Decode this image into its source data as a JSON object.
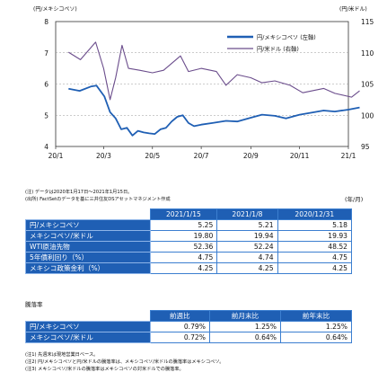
{
  "chart_data": {
    "type": "line",
    "left_axis_label": "(円/メキシコペソ)",
    "right_axis_label": "(円/米ドル)",
    "x_unit_label": "(年/月)",
    "x_tick_labels": [
      "20/1",
      "20/3",
      "20/5",
      "20/7",
      "20/9",
      "20/11",
      "21/1"
    ],
    "left_ylim": [
      4,
      8
    ],
    "left_ticks": [
      "8",
      "7",
      "6",
      "5",
      "4"
    ],
    "right_ylim": [
      95,
      115
    ],
    "right_ticks": [
      "115",
      "110",
      "105",
      "100",
      "95"
    ],
    "legend": [
      "円/メキシコペソ (左軸)",
      "円/米ドル (右軸)"
    ],
    "series": [
      {
        "name": "円/メキシコペソ (左軸)",
        "axis": "left",
        "color": "#1f5fb4",
        "points": [
          [
            "2020-01-17",
            5.85
          ],
          [
            "2020-01-31",
            5.78
          ],
          [
            "2020-02-14",
            5.92
          ],
          [
            "2020-02-21",
            5.95
          ],
          [
            "2020-03-02",
            5.6
          ],
          [
            "2020-03-09",
            5.1
          ],
          [
            "2020-03-16",
            4.9
          ],
          [
            "2020-03-23",
            4.55
          ],
          [
            "2020-03-30",
            4.6
          ],
          [
            "2020-04-06",
            4.35
          ],
          [
            "2020-04-13",
            4.5
          ],
          [
            "2020-04-20",
            4.45
          ],
          [
            "2020-04-27",
            4.42
          ],
          [
            "2020-05-04",
            4.4
          ],
          [
            "2020-05-11",
            4.55
          ],
          [
            "2020-05-18",
            4.6
          ],
          [
            "2020-05-25",
            4.8
          ],
          [
            "2020-06-01",
            4.95
          ],
          [
            "2020-06-08",
            5.0
          ],
          [
            "2020-06-15",
            4.75
          ],
          [
            "2020-06-22",
            4.65
          ],
          [
            "2020-07-01",
            4.7
          ],
          [
            "2020-07-15",
            4.75
          ],
          [
            "2020-08-01",
            4.82
          ],
          [
            "2020-08-15",
            4.8
          ],
          [
            "2020-09-01",
            4.92
          ],
          [
            "2020-09-15",
            5.02
          ],
          [
            "2020-10-01",
            4.98
          ],
          [
            "2020-10-15",
            4.9
          ],
          [
            "2020-11-01",
            5.02
          ],
          [
            "2020-11-15",
            5.08
          ],
          [
            "2020-12-01",
            5.15
          ],
          [
            "2020-12-15",
            5.12
          ],
          [
            "2021-01-01",
            5.18
          ],
          [
            "2021-01-15",
            5.25
          ]
        ]
      },
      {
        "name": "円/米ドル (右軸)",
        "axis": "right",
        "color": "#6b4d8c",
        "points": [
          [
            "2020-01-17",
            110.1
          ],
          [
            "2020-02-01",
            108.9
          ],
          [
            "2020-02-20",
            111.7
          ],
          [
            "2020-03-01",
            107.5
          ],
          [
            "2020-03-09",
            102.5
          ],
          [
            "2020-03-16",
            106.0
          ],
          [
            "2020-03-24",
            111.2
          ],
          [
            "2020-04-01",
            107.5
          ],
          [
            "2020-04-15",
            107.2
          ],
          [
            "2020-05-01",
            106.8
          ],
          [
            "2020-05-15",
            107.2
          ],
          [
            "2020-06-05",
            109.5
          ],
          [
            "2020-06-15",
            107.0
          ],
          [
            "2020-07-01",
            107.5
          ],
          [
            "2020-07-20",
            107.0
          ],
          [
            "2020-08-01",
            104.8
          ],
          [
            "2020-08-15",
            106.5
          ],
          [
            "2020-09-01",
            106.0
          ],
          [
            "2020-09-15",
            105.2
          ],
          [
            "2020-10-01",
            105.5
          ],
          [
            "2020-10-20",
            104.8
          ],
          [
            "2020-11-05",
            103.6
          ],
          [
            "2020-11-20",
            104.0
          ],
          [
            "2020-12-01",
            104.3
          ],
          [
            "2020-12-15",
            103.5
          ],
          [
            "2021-01-05",
            102.9
          ],
          [
            "2021-01-15",
            103.9
          ]
        ]
      }
    ]
  },
  "chart_notes": [
    "(注) データは2020年1月17日～2021年1月15日。",
    "(出所) FactSetのデータを基に三井住友DSアセットマネジメント作成"
  ],
  "table1": {
    "headers": [
      "2021/1/15",
      "2021/1/8",
      "2020/12/31"
    ],
    "rows": [
      {
        "label": "円/メキシコペソ",
        "values": [
          "5.25",
          "5.21",
          "5.18"
        ]
      },
      {
        "label": "メキシコペソ/米ドル",
        "values": [
          "19.80",
          "19.94",
          "19.93"
        ]
      },
      {
        "label": "WTI原油先物",
        "values": [
          "52.36",
          "52.24",
          "48.52"
        ]
      },
      {
        "label": "5年債利回り（%）",
        "values": [
          "4.75",
          "4.74",
          "4.75"
        ]
      },
      {
        "label": "メキシコ政策金利（%）",
        "values": [
          "4.25",
          "4.25",
          "4.25"
        ]
      }
    ]
  },
  "table2": {
    "caption": "騰落率",
    "headers": [
      "前週比",
      "前月末比",
      "前年末比"
    ],
    "rows": [
      {
        "label": "円/メキシコペソ",
        "values": [
          "0.79%",
          "1.25%",
          "1.25%"
        ]
      },
      {
        "label": "メキシコペソ/米ドル",
        "values": [
          "0.72%",
          "0.64%",
          "0.64%"
        ]
      }
    ]
  },
  "footnotes": [
    "(注1) 先週末は現地営業日ベース。",
    "(注2) 円/メキシコペソと円/米ドルの騰落率は、メキシコペソ/米ドルの騰落率はメキシコペソ。",
    "(注3) メキシコペソ/米ドルの騰落率はメキシコペソの対米ドルでの騰落率。"
  ]
}
